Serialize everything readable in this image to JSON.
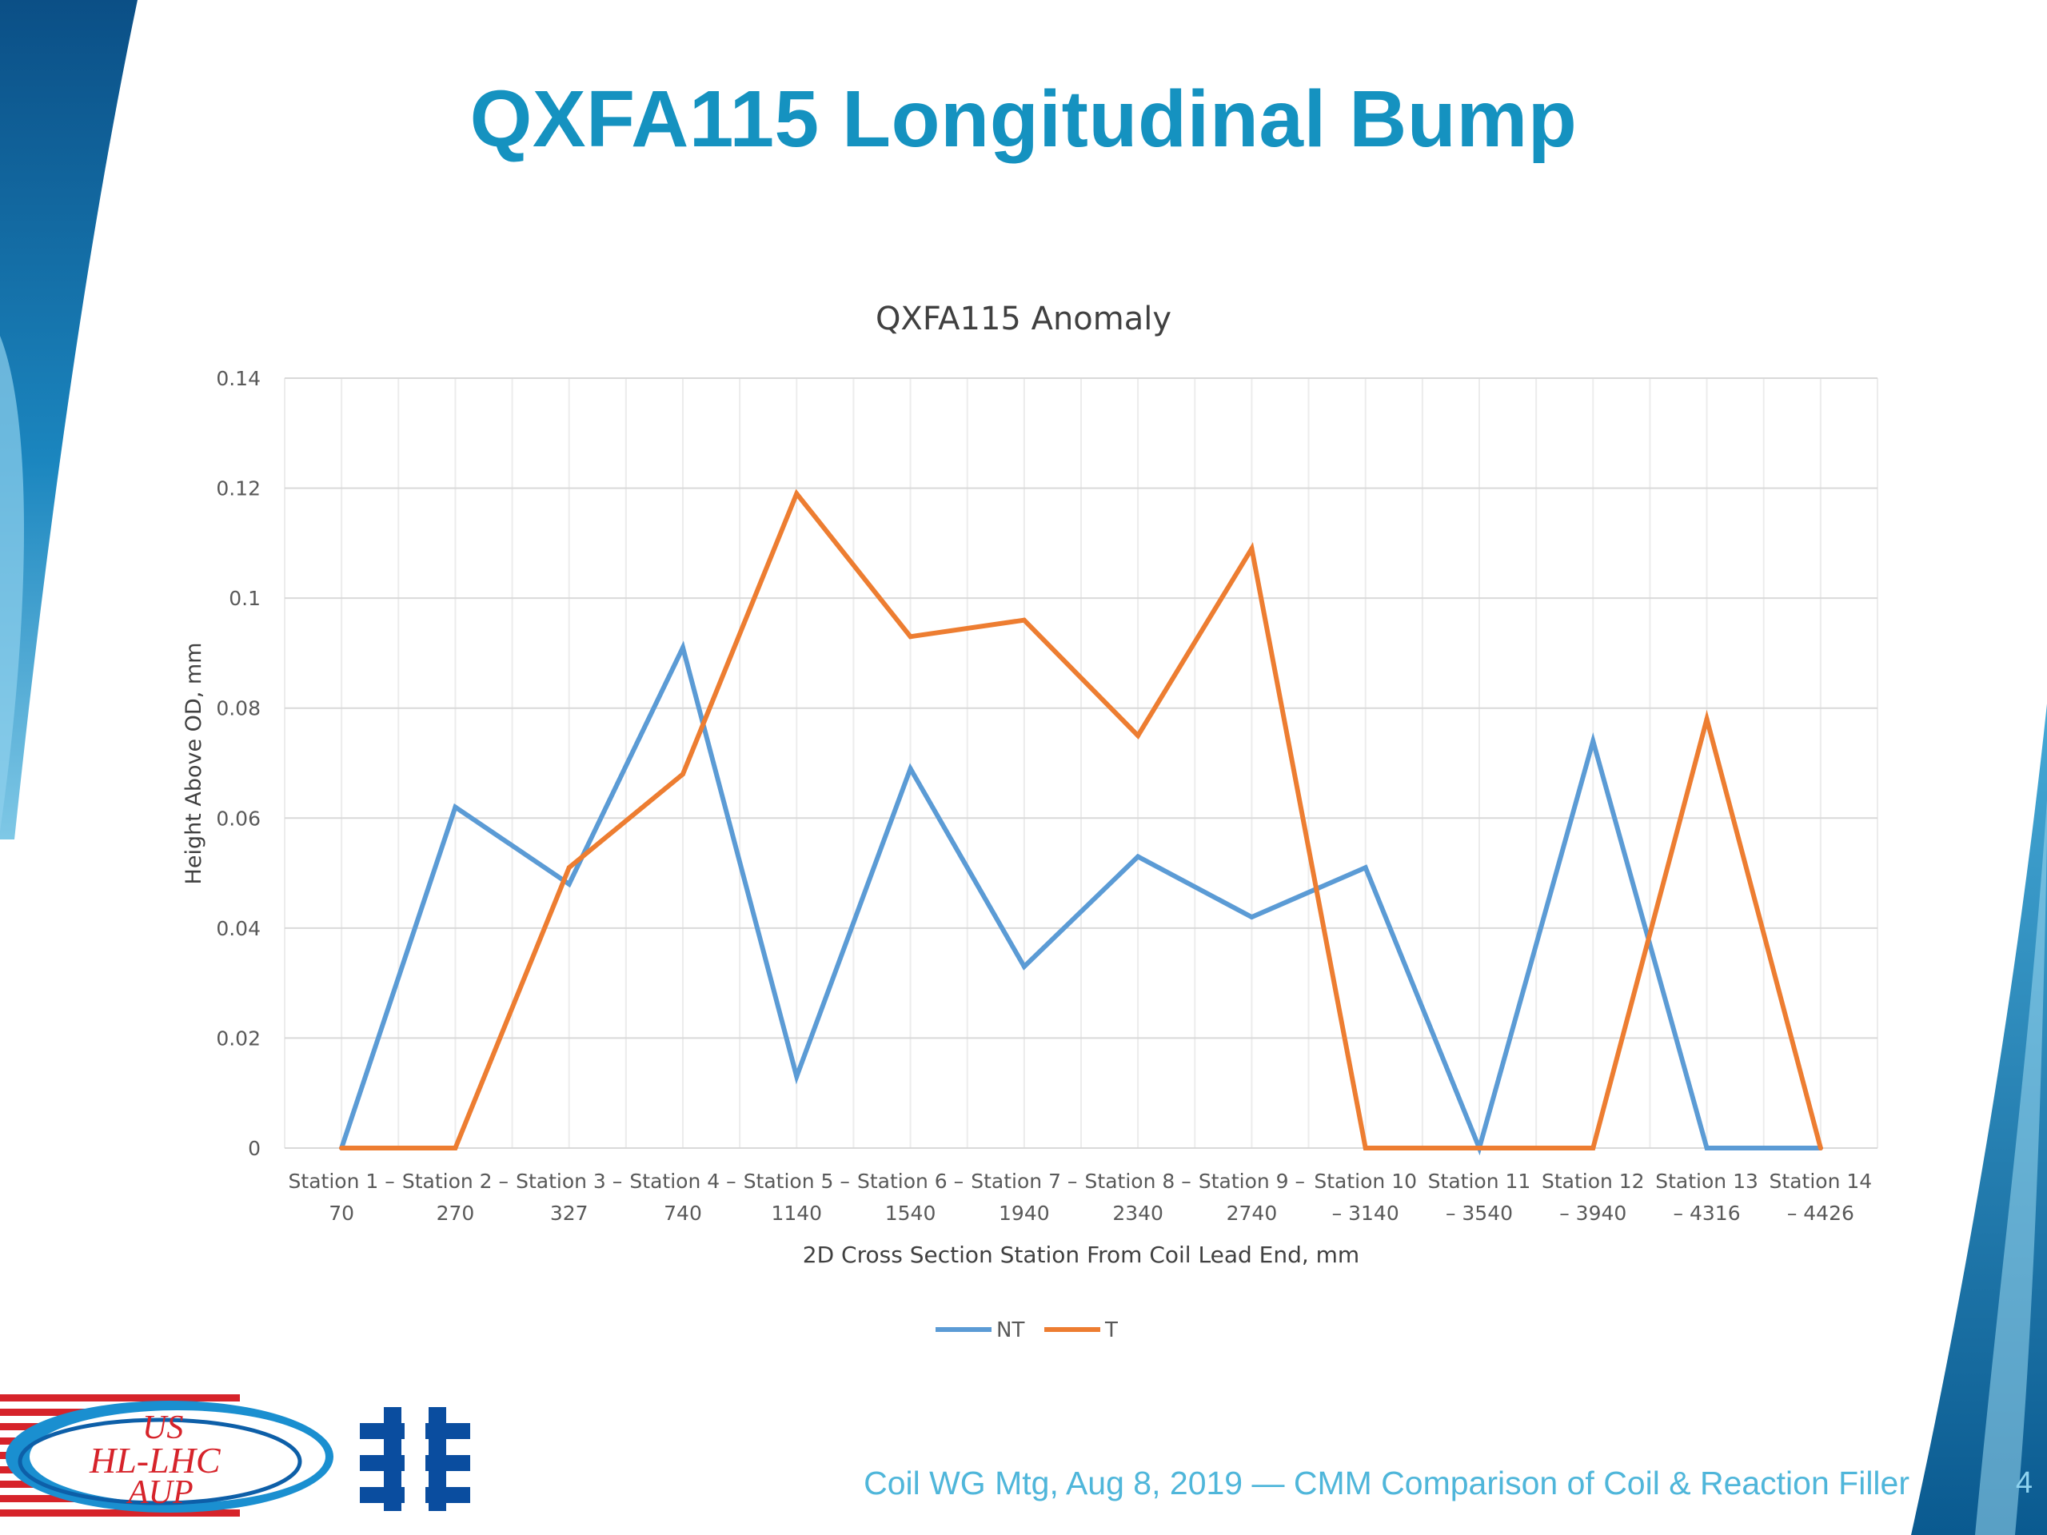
{
  "slide": {
    "title": "QXFA115 Longitudinal Bump",
    "footer": "Coil WG Mtg, Aug 8, 2019 — CMM Comparison of Coil & Reaction Filler",
    "page_number": "4"
  },
  "logos": {
    "us_hl_lhc": {
      "lines": [
        "US",
        "HL-LHC",
        "AUP"
      ],
      "icon": "us-hl-lhc-aup-logo"
    },
    "fermilab": {
      "icon": "fermilab-logo"
    }
  },
  "colors": {
    "title": "#1592c0",
    "footer": "#4fb6da",
    "series_nt": "#5b9bd5",
    "series_t": "#ed7d31",
    "grid": "#d9d9d9",
    "axis_text": "#595959"
  },
  "chart_data": {
    "type": "line",
    "title": "QXFA115 Anomaly",
    "xlabel": "2D Cross Section Station From Coil Lead End, mm",
    "ylabel": "Height Above OD, mm",
    "ylim": [
      0,
      0.14
    ],
    "yticks": [
      "0",
      "0.02",
      "0.04",
      "0.06",
      "0.08",
      "0.1",
      "0.12",
      "0.14"
    ],
    "grid": true,
    "legend_position": "bottom",
    "categories": [
      [
        "Station 1 –",
        "70"
      ],
      [
        "Station 2 –",
        "270"
      ],
      [
        "Station 3 –",
        "327"
      ],
      [
        "Station 4 –",
        "740"
      ],
      [
        "Station 5 –",
        "1140"
      ],
      [
        "Station 6 –",
        "1540"
      ],
      [
        "Station 7 –",
        "1940"
      ],
      [
        "Station 8 –",
        "2340"
      ],
      [
        "Station 9 –",
        "2740"
      ],
      [
        "Station 10",
        "– 3140"
      ],
      [
        "Station 11",
        "– 3540"
      ],
      [
        "Station 12",
        "– 3940"
      ],
      [
        "Station 13",
        "– 4316"
      ],
      [
        "Station 14",
        "– 4426"
      ]
    ],
    "series": [
      {
        "name": "NT",
        "color": "#5b9bd5",
        "values": [
          0,
          0.062,
          0.048,
          0.091,
          0.013,
          0.069,
          0.033,
          0.053,
          0.042,
          0.051,
          0,
          0.074,
          0,
          0
        ]
      },
      {
        "name": "T",
        "color": "#ed7d31",
        "values": [
          0,
          0,
          0.051,
          0.068,
          0.119,
          0.093,
          0.096,
          0.075,
          0.109,
          0,
          0,
          0,
          0.078,
          0
        ]
      }
    ]
  }
}
